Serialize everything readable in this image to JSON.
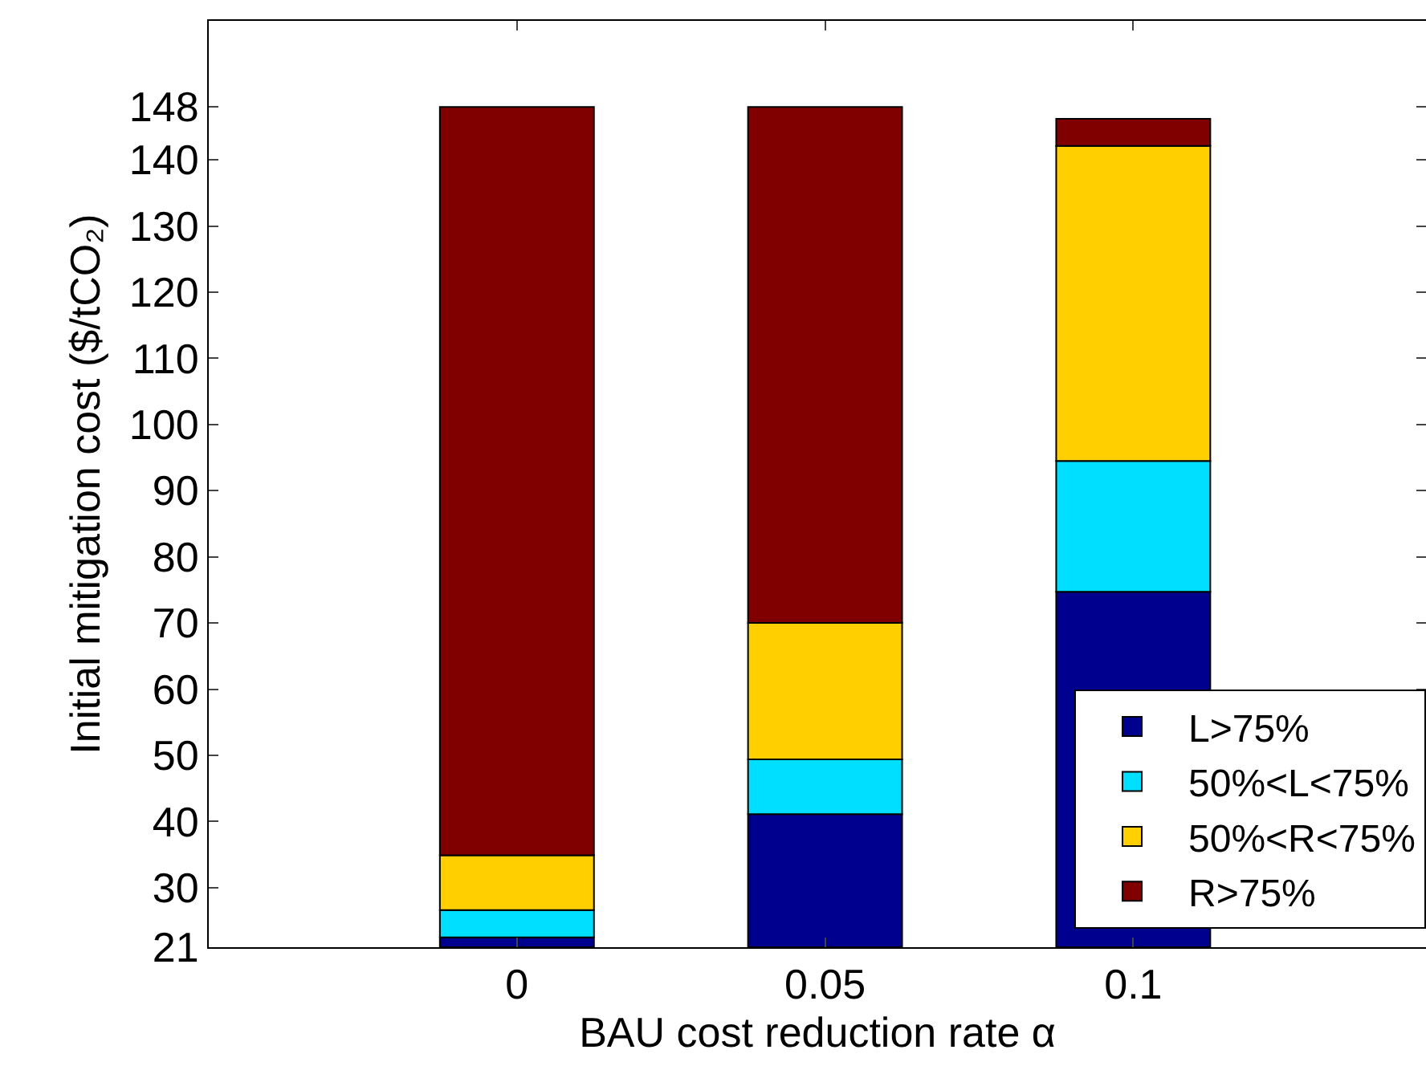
{
  "chart_data": {
    "type": "bar",
    "xlabel": "BAU cost reduction rate α",
    "ylabel": "Initial mitigation cost ($/tCO₂)",
    "categories": [
      "0",
      "0.05",
      "0.1"
    ],
    "series": [
      {
        "name": "L>75%",
        "color": "#00008f",
        "base": [
          21,
          21,
          21
        ],
        "values": [
          1.5,
          20.1,
          53.7
        ]
      },
      {
        "name": "50%<L<75%",
        "color": "#00dfff",
        "base": [
          22.5,
          41.1,
          74.7
        ],
        "values": [
          4.1,
          8.3,
          19.8
        ]
      },
      {
        "name": "50%<R<75%",
        "color": "#ffcf00",
        "base": [
          26.6,
          49.4,
          94.5
        ],
        "values": [
          8.3,
          20.6,
          47.6
        ]
      },
      {
        "name": "R>75%",
        "color": "#800000",
        "base": [
          34.9,
          70,
          142.1
        ],
        "values": [
          113.1,
          78,
          4.1
        ]
      }
    ],
    "ylim": [
      21,
      161
    ],
    "yticks": [
      21,
      30,
      40,
      50,
      60,
      70,
      80,
      90,
      100,
      110,
      120,
      130,
      140,
      148
    ],
    "grid": false,
    "legend": "bottom right"
  }
}
